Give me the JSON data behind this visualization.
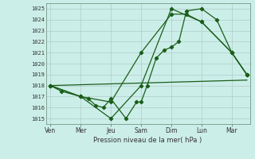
{
  "xlabel": "Pression niveau de la mer( hPa )",
  "bg_color": "#cceee8",
  "grid_color": "#b0ccc8",
  "line_color": "#1a5e1a",
  "ylim": [
    1014.5,
    1025.5
  ],
  "yticks": [
    1015,
    1016,
    1017,
    1018,
    1019,
    1020,
    1021,
    1022,
    1023,
    1024,
    1025
  ],
  "xtick_labels": [
    "Ven",
    "Mer",
    "Jeu",
    "Sam",
    "Dim",
    "Lun",
    "Mar"
  ],
  "xtick_positions": [
    0,
    1,
    2,
    3,
    4,
    5,
    6
  ],
  "xlim": [
    -0.15,
    6.6
  ],
  "series1_x": [
    0,
    0.35,
    1.0,
    1.25,
    1.5,
    1.75,
    2.0,
    2.5,
    2.85,
    3.0,
    3.2,
    3.5,
    3.75,
    4.0,
    4.25,
    4.5,
    5.0,
    5.5,
    6.0,
    6.5
  ],
  "series1_y": [
    1018.0,
    1017.5,
    1017.0,
    1016.8,
    1016.2,
    1016.0,
    1016.8,
    1015.0,
    1016.5,
    1016.5,
    1018.0,
    1020.5,
    1021.2,
    1021.5,
    1022.0,
    1024.8,
    1025.0,
    1024.0,
    1021.0,
    1019.0
  ],
  "series2_x": [
    0,
    1.0,
    2.0,
    3.0,
    4.0,
    5.0,
    6.0,
    6.5
  ],
  "series2_y": [
    1018.0,
    1017.0,
    1015.0,
    1018.0,
    1025.0,
    1023.8,
    1021.0,
    1019.0
  ],
  "series3_x": [
    0,
    6.5
  ],
  "series3_y": [
    1018.0,
    1018.5
  ],
  "series4_x": [
    0,
    1.0,
    2.0,
    3.0,
    4.0,
    4.5,
    5.0,
    6.0,
    6.5
  ],
  "series4_y": [
    1018.0,
    1017.0,
    1016.5,
    1021.0,
    1024.5,
    1024.5,
    1023.8,
    1021.0,
    1019.0
  ]
}
